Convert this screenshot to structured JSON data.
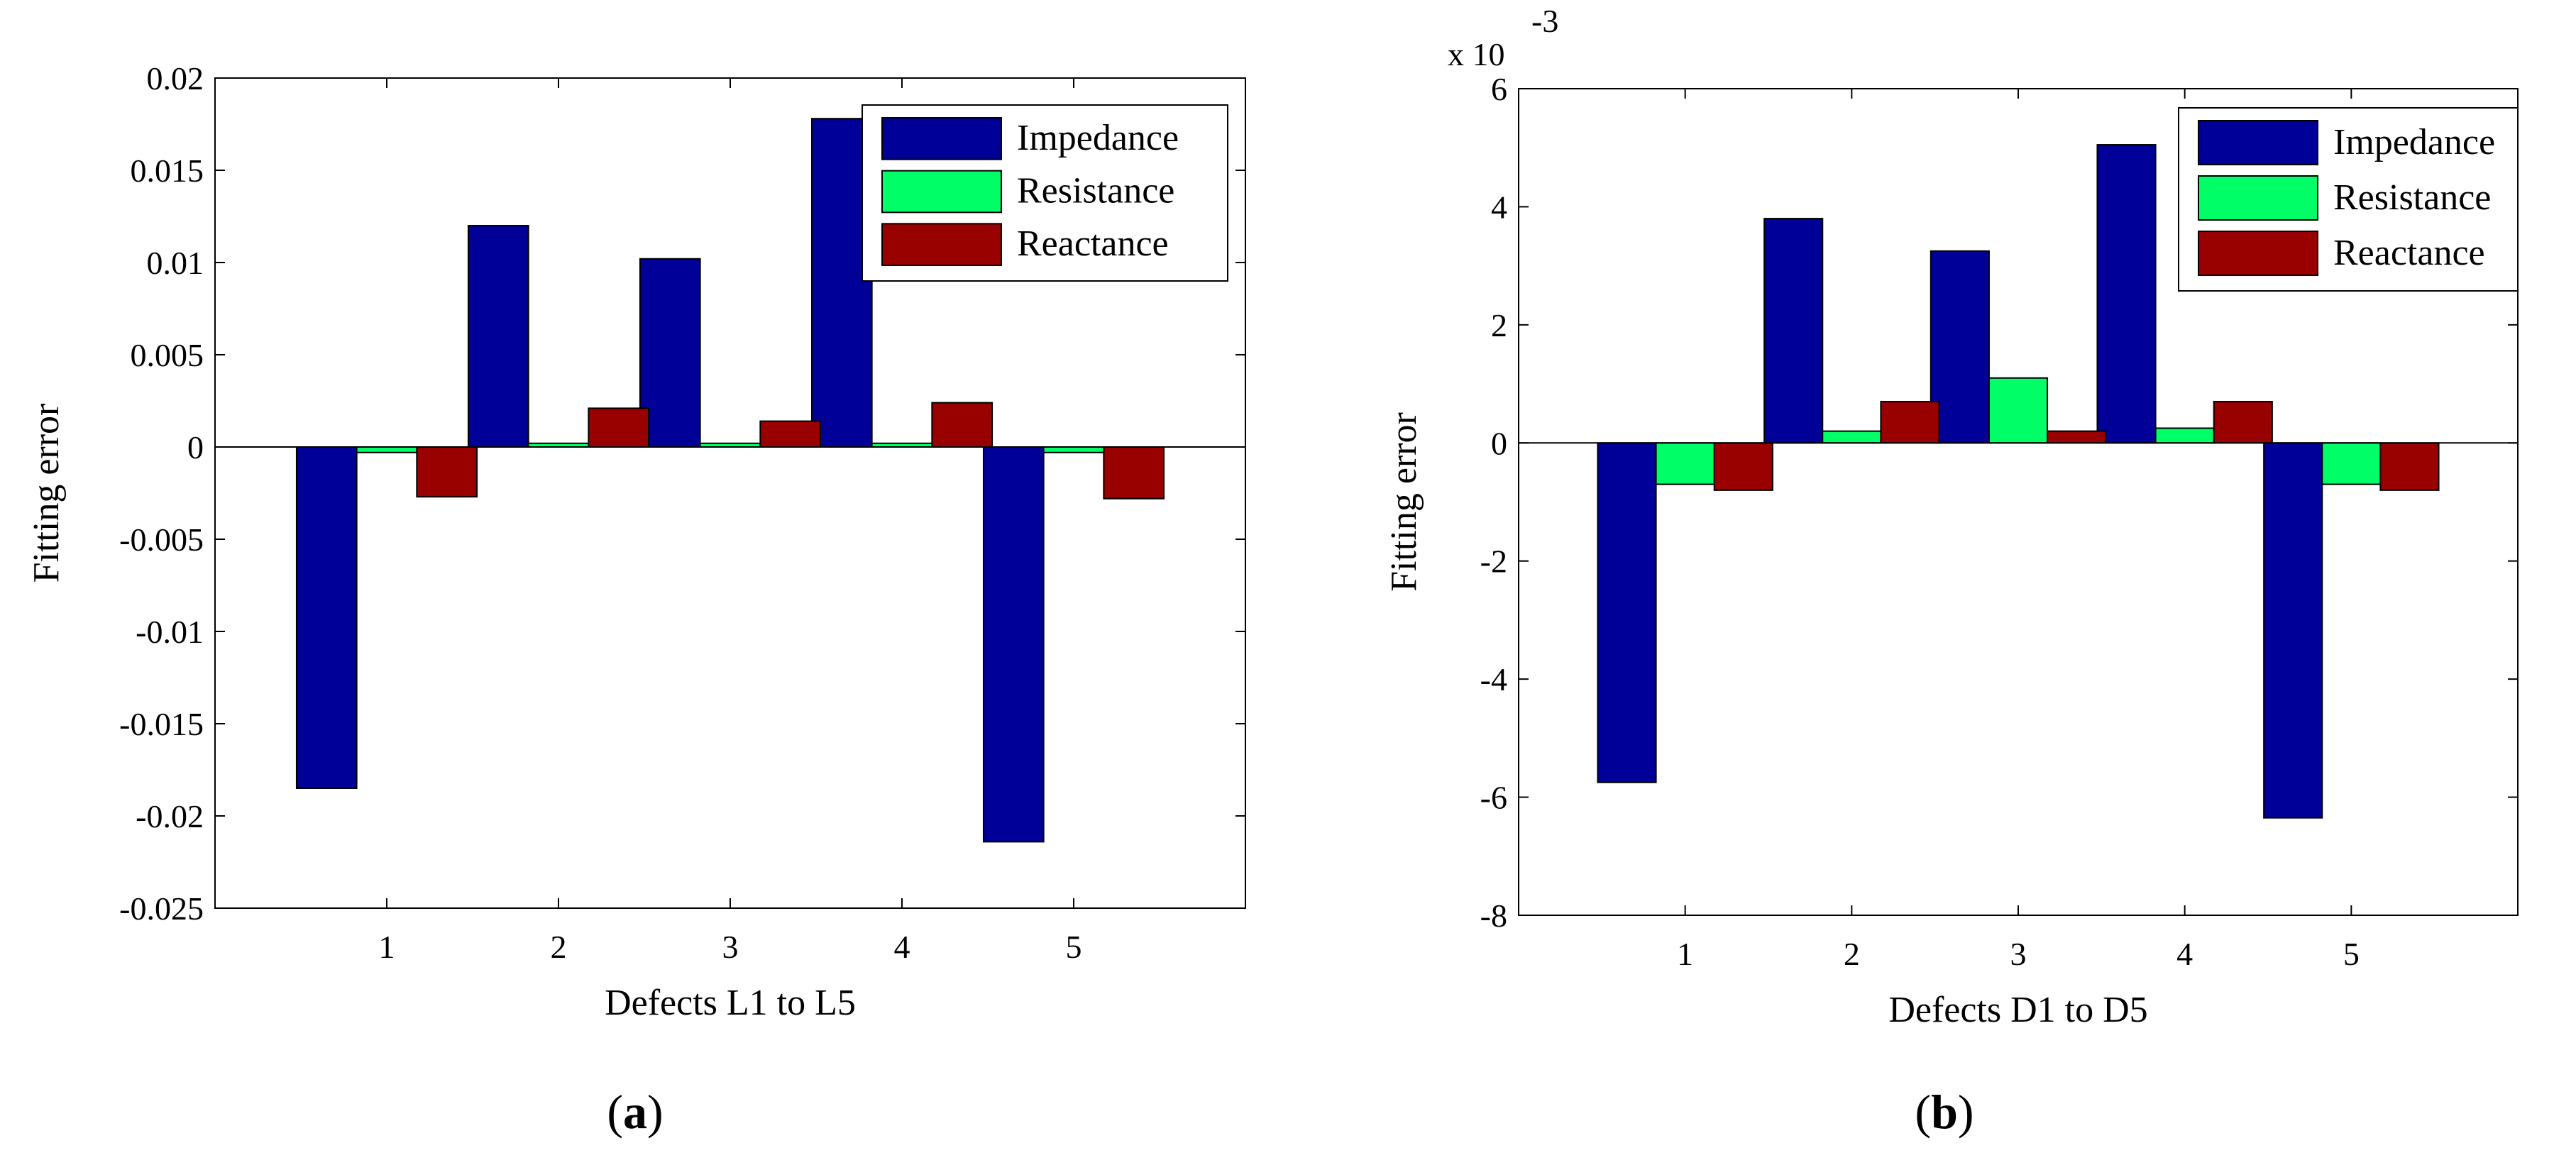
{
  "chart_data": [
    {
      "type": "bar",
      "panel_label": "a",
      "categories": [
        "1",
        "2",
        "3",
        "4",
        "5"
      ],
      "series": [
        {
          "name": "Impedance",
          "color": "#000099",
          "values": [
            -0.0185,
            0.012,
            0.0102,
            0.0178,
            -0.0214
          ]
        },
        {
          "name": "Resistance",
          "color": "#00ff66",
          "values": [
            -0.0003,
            0.0002,
            0.0002,
            0.0002,
            -0.0003
          ]
        },
        {
          "name": "Reactance",
          "color": "#990000",
          "values": [
            -0.0027,
            0.0021,
            0.0014,
            0.0024,
            -0.0028
          ]
        }
      ],
      "xlabel": "Defects L1 to L5",
      "ylabel": "Fitting error",
      "ylim": [
        -0.025,
        0.02
      ],
      "yticks": [
        "0.02",
        "0.015",
        "0.01",
        "0.005",
        "0",
        "-0.005",
        "-0.01",
        "-0.015",
        "-0.02",
        "-0.025"
      ],
      "ytick_values": [
        0.02,
        0.015,
        0.01,
        0.005,
        0,
        -0.005,
        -0.01,
        -0.015,
        -0.02,
        -0.025
      ],
      "multiplier": "",
      "legend": "top-right",
      "grid": false
    },
    {
      "type": "bar",
      "panel_label": "b",
      "categories": [
        "1",
        "2",
        "3",
        "4",
        "5"
      ],
      "series": [
        {
          "name": "Impedance",
          "color": "#000099",
          "values": [
            -5.75,
            3.8,
            3.25,
            5.05,
            -6.35
          ]
        },
        {
          "name": "Resistance",
          "color": "#00ff66",
          "values": [
            -0.7,
            0.2,
            1.1,
            0.25,
            -0.7
          ]
        },
        {
          "name": "Reactance",
          "color": "#990000",
          "values": [
            -0.8,
            0.7,
            0.2,
            0.7,
            -0.8
          ]
        }
      ],
      "xlabel": "Defects D1 to D5",
      "ylabel": "Fitting error",
      "ylim": [
        -8,
        6
      ],
      "yticks": [
        "6",
        "4",
        "2",
        "0",
        "-2",
        "-4",
        "-6",
        "-8"
      ],
      "ytick_values": [
        6,
        4,
        2,
        0,
        -2,
        -4,
        -6,
        -8
      ],
      "multiplier": "x 10",
      "multiplier_exp": "-3",
      "legend": "top-right",
      "grid": false
    }
  ]
}
